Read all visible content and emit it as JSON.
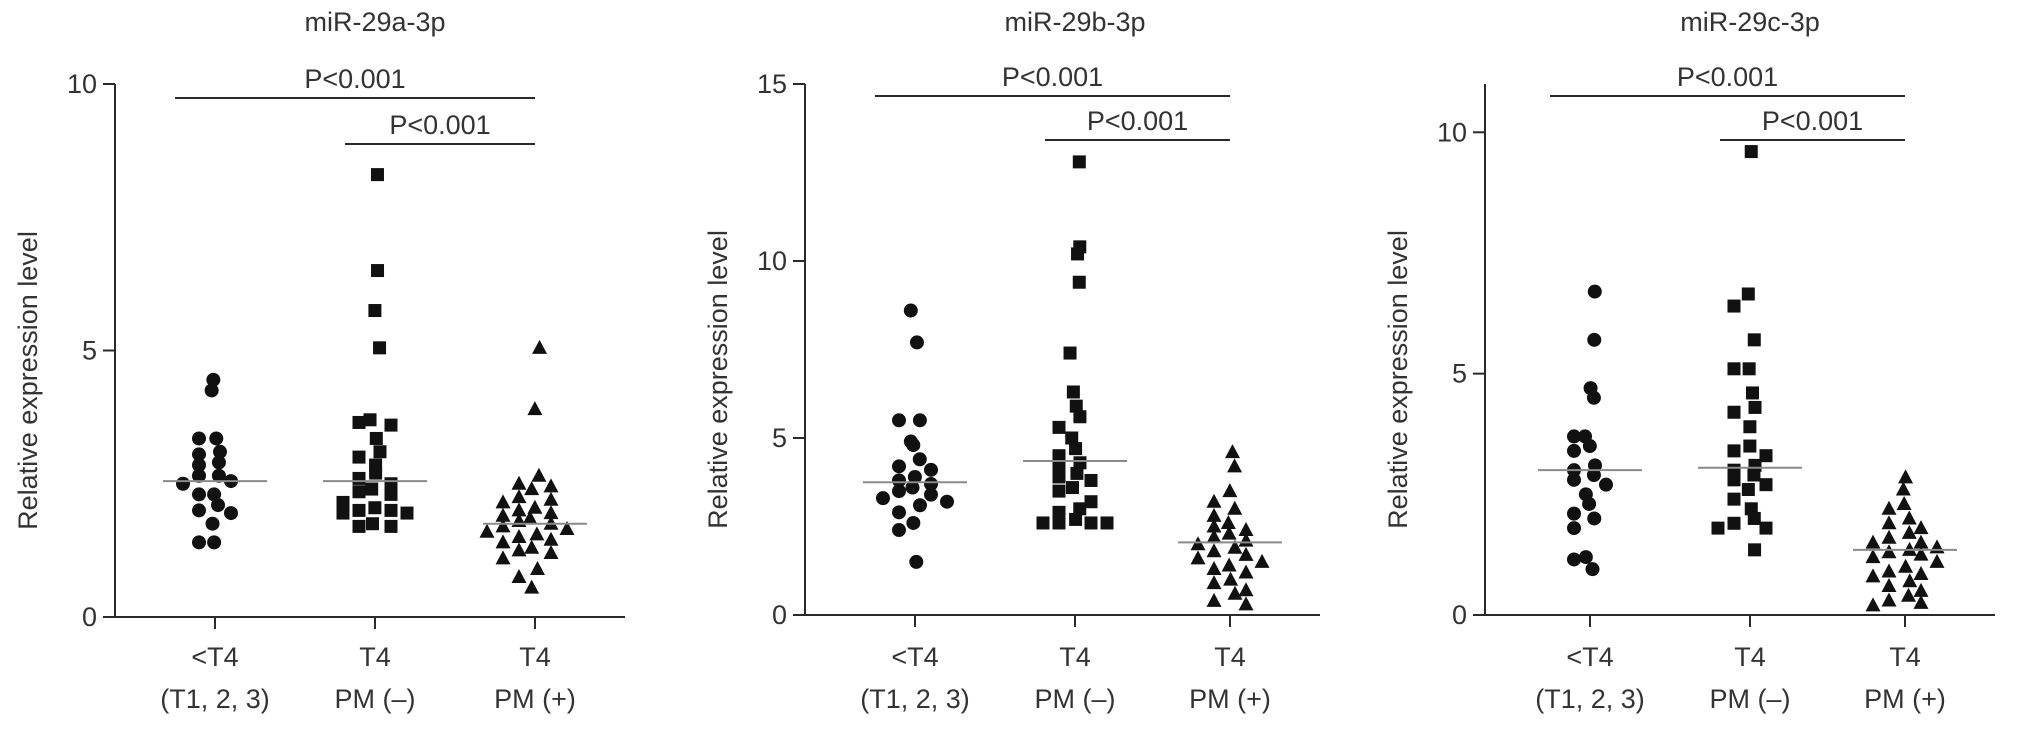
{
  "chart_data": [
    {
      "type": "scatter",
      "title": "miR-29a-3p",
      "ylabel": "Relative expression level",
      "ylim": [
        0,
        10
      ],
      "yticks": [
        0,
        5,
        10
      ],
      "categories": [
        {
          "line1": "<T4",
          "line2": "(T1, 2, 3)"
        },
        {
          "line1": "T4",
          "line2": "PM (–)"
        },
        {
          "line1": "T4",
          "line2": "PM (+)"
        }
      ],
      "series": [
        {
          "marker": "circle",
          "mean": 2.55,
          "values": [
            4.45,
            4.25,
            3.35,
            3.35,
            3.1,
            3.05,
            2.9,
            2.85,
            2.65,
            2.65,
            2.55,
            2.5,
            2.3,
            2.3,
            2.1,
            2.0,
            1.95,
            1.75,
            1.4,
            1.4
          ]
        },
        {
          "marker": "square",
          "mean": 2.55,
          "values": [
            8.3,
            6.5,
            5.75,
            5.05,
            3.7,
            3.65,
            3.6,
            3.35,
            3.1,
            3.0,
            2.85,
            2.7,
            2.6,
            2.5,
            2.4,
            2.35,
            2.3,
            2.15,
            2.05,
            2.0,
            2.0,
            1.95,
            1.95,
            1.75,
            1.7,
            1.7
          ]
        },
        {
          "marker": "triangle",
          "mean": 1.75,
          "values": [
            5.05,
            3.9,
            2.65,
            2.5,
            2.45,
            2.4,
            2.25,
            2.2,
            2.15,
            2.05,
            2.0,
            1.95,
            1.9,
            1.85,
            1.8,
            1.75,
            1.7,
            1.65,
            1.6,
            1.55,
            1.5,
            1.45,
            1.4,
            1.3,
            1.25,
            1.2,
            1.1,
            0.9,
            0.75,
            0.55
          ]
        }
      ],
      "significance": [
        {
          "from": 0,
          "to": 2,
          "label": "P<0.001",
          "level": 1
        },
        {
          "from": 1,
          "to": 2,
          "label": "P<0.001",
          "level": 2
        }
      ]
    },
    {
      "type": "scatter",
      "title": "miR-29b-3p",
      "ylabel": "Relative expression level",
      "ylim": [
        0,
        15
      ],
      "yticks": [
        0,
        5,
        10,
        15
      ],
      "categories": [
        {
          "line1": "<T4",
          "line2": "(T1, 2, 3)"
        },
        {
          "line1": "T4",
          "line2": "PM (–)"
        },
        {
          "line1": "T4",
          "line2": "PM (+)"
        }
      ],
      "series": [
        {
          "marker": "circle",
          "mean": 3.75,
          "values": [
            8.6,
            7.7,
            5.5,
            5.5,
            4.9,
            4.8,
            4.4,
            4.2,
            4.1,
            3.9,
            3.8,
            3.7,
            3.6,
            3.5,
            3.4,
            3.3,
            3.2,
            3.1,
            2.9,
            2.6,
            2.4,
            1.5
          ]
        },
        {
          "marker": "square",
          "mean": 4.35,
          "values": [
            12.8,
            10.4,
            10.2,
            9.4,
            7.4,
            6.3,
            5.9,
            5.6,
            5.3,
            5.0,
            4.7,
            4.5,
            4.3,
            4.2,
            4.0,
            3.9,
            3.8,
            3.6,
            3.5,
            3.2,
            3.0,
            2.9,
            2.7,
            2.6,
            2.6,
            2.6,
            2.6
          ]
        },
        {
          "marker": "triangle",
          "mean": 2.05,
          "values": [
            4.6,
            4.2,
            3.5,
            3.2,
            3.0,
            2.8,
            2.6,
            2.5,
            2.4,
            2.3,
            2.2,
            2.1,
            2.0,
            1.9,
            1.8,
            1.7,
            1.6,
            1.5,
            1.4,
            1.3,
            1.2,
            1.0,
            0.9,
            0.7,
            0.6,
            0.4,
            0.3
          ]
        }
      ],
      "significance": [
        {
          "from": 0,
          "to": 2,
          "label": "P<0.001",
          "level": 1
        },
        {
          "from": 1,
          "to": 2,
          "label": "P<0.001",
          "level": 2
        }
      ]
    },
    {
      "type": "scatter",
      "title": "miR-29c-3p",
      "ylabel": "Relative expression level",
      "ylim": [
        0,
        11
      ],
      "yticks": [
        0,
        5,
        10
      ],
      "categories": [
        {
          "line1": "<T4",
          "line2": "(T1, 2, 3)"
        },
        {
          "line1": "T4",
          "line2": "PM (–)"
        },
        {
          "line1": "T4",
          "line2": "PM (+)"
        }
      ],
      "series": [
        {
          "marker": "circle",
          "mean": 3.0,
          "values": [
            6.7,
            5.7,
            4.7,
            4.5,
            3.7,
            3.7,
            3.5,
            3.4,
            3.1,
            3.0,
            2.9,
            2.8,
            2.7,
            2.5,
            2.3,
            2.1,
            2.0,
            1.8,
            1.2,
            1.15,
            0.95
          ]
        },
        {
          "marker": "square",
          "mean": 3.05,
          "values": [
            9.6,
            6.65,
            6.4,
            5.7,
            5.1,
            5.1,
            4.6,
            4.3,
            4.2,
            3.9,
            3.5,
            3.4,
            3.3,
            3.1,
            3.0,
            2.9,
            2.8,
            2.7,
            2.6,
            2.4,
            2.2,
            2.0,
            1.9,
            1.8,
            1.8,
            1.35
          ]
        },
        {
          "marker": "triangle",
          "mean": 1.35,
          "values": [
            2.85,
            2.6,
            2.3,
            2.2,
            2.0,
            1.9,
            1.8,
            1.7,
            1.6,
            1.5,
            1.5,
            1.4,
            1.35,
            1.3,
            1.25,
            1.2,
            1.1,
            1.0,
            0.9,
            0.85,
            0.8,
            0.7,
            0.6,
            0.5,
            0.4,
            0.3,
            0.25,
            0.2
          ]
        }
      ],
      "significance": [
        {
          "from": 0,
          "to": 2,
          "label": "P<0.001",
          "level": 1
        },
        {
          "from": 1,
          "to": 2,
          "label": "P<0.001",
          "level": 2
        }
      ]
    }
  ]
}
